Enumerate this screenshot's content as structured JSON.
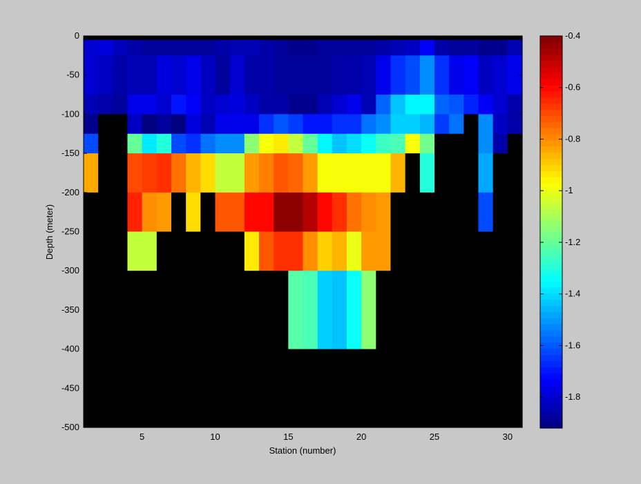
{
  "chart_data": {
    "type": "heatmap",
    "title": "",
    "xlabel": "Station (number)",
    "ylabel": "Depth (meter)",
    "xlim": [
      1,
      31
    ],
    "ylim": [
      -500,
      0
    ],
    "clim": [
      -1.92,
      -0.4
    ],
    "xticks": [
      5,
      10,
      15,
      20,
      25,
      30
    ],
    "yticks": [
      0,
      -50,
      -100,
      -150,
      -200,
      -250,
      -300,
      -350,
      -400,
      -450,
      -500
    ],
    "colorbar_ticks": [
      -0.4,
      -0.6,
      -0.8,
      -1,
      -1.2,
      -1.4,
      -1.6,
      -1.8
    ],
    "colormap": "jet",
    "no_data_color": "#000000",
    "background_color": "#c8c8c8",
    "layers": [
      {
        "depth_top": 0,
        "depth_bottom": -5,
        "values": [
          null,
          null,
          null,
          null,
          null,
          null,
          null,
          null,
          null,
          null,
          null,
          null,
          null,
          null,
          null,
          null,
          null,
          null,
          null,
          null,
          null,
          null,
          null,
          null,
          null,
          null,
          null,
          null,
          null,
          null
        ]
      },
      {
        "depth_top": -5,
        "depth_bottom": -25,
        "values": [
          -1.8,
          -1.78,
          -1.83,
          -1.86,
          -1.88,
          -1.88,
          -1.88,
          -1.88,
          -1.88,
          -1.86,
          -1.84,
          -1.84,
          -1.86,
          -1.88,
          -1.9,
          -1.9,
          -1.88,
          -1.88,
          -1.88,
          -1.88,
          -1.86,
          -1.84,
          -1.82,
          -1.74,
          -1.86,
          -1.88,
          -1.88,
          -1.9,
          -1.9,
          -1.84
        ]
      },
      {
        "depth_top": -25,
        "depth_bottom": -75,
        "values": [
          -1.8,
          -1.82,
          -1.86,
          -1.84,
          -1.84,
          -1.78,
          -1.8,
          -1.76,
          -1.82,
          -1.88,
          -1.8,
          -1.86,
          -1.86,
          -1.88,
          -1.88,
          -1.88,
          -1.88,
          -1.86,
          -1.86,
          -1.84,
          -1.76,
          -1.66,
          -1.62,
          -1.52,
          -1.66,
          -1.76,
          -1.74,
          -1.82,
          -1.8,
          -1.76
        ]
      },
      {
        "depth_top": -75,
        "depth_bottom": -100,
        "values": [
          -1.84,
          -1.86,
          -1.88,
          -1.76,
          -1.76,
          -1.8,
          -1.7,
          -1.74,
          -1.82,
          -1.8,
          -1.78,
          -1.82,
          -1.86,
          -1.86,
          -1.9,
          -1.9,
          -1.84,
          -1.8,
          -1.76,
          -1.84,
          -1.58,
          -1.44,
          -1.36,
          -1.36,
          -1.58,
          -1.6,
          -1.68,
          -1.74,
          -1.8,
          -1.86
        ]
      },
      {
        "depth_top": -100,
        "depth_bottom": -125,
        "values": [
          -1.9,
          null,
          null,
          -1.82,
          -1.92,
          -1.88,
          -1.92,
          -1.78,
          -1.84,
          -1.76,
          -1.76,
          -1.76,
          -1.66,
          -1.6,
          -1.64,
          -1.7,
          -1.7,
          -1.66,
          -1.66,
          -1.56,
          -1.52,
          -1.42,
          -1.42,
          -1.46,
          -1.64,
          -1.56,
          null,
          -1.52,
          -1.82,
          -1.86
        ]
      },
      {
        "depth_top": -125,
        "depth_bottom": -150,
        "values": [
          -1.62,
          null,
          null,
          -1.2,
          -1.38,
          -1.3,
          -1.62,
          -1.66,
          -1.56,
          -1.52,
          -1.52,
          -1.14,
          -0.98,
          -0.94,
          -1.06,
          -1.2,
          -1.36,
          -1.44,
          -1.4,
          -1.34,
          -1.26,
          -1.24,
          -0.98,
          -1.18,
          null,
          null,
          null,
          -1.52,
          -1.86,
          null
        ]
      },
      {
        "depth_top": -150,
        "depth_bottom": -200,
        "values": [
          -0.84,
          null,
          null,
          -0.7,
          -0.68,
          -0.66,
          -0.76,
          -0.86,
          -0.92,
          -1.06,
          -1.06,
          -0.82,
          -0.78,
          -0.72,
          -0.74,
          -0.82,
          -0.98,
          -0.98,
          -0.98,
          -0.98,
          -0.98,
          -0.86,
          null,
          -1.3,
          null,
          null,
          null,
          -1.48,
          null,
          null
        ]
      },
      {
        "depth_top": -200,
        "depth_bottom": -250,
        "values": [
          null,
          null,
          null,
          -0.64,
          -0.8,
          -0.82,
          null,
          -0.92,
          null,
          -0.72,
          -0.72,
          -0.6,
          -0.6,
          -0.42,
          -0.42,
          -0.48,
          -0.6,
          -0.66,
          -0.76,
          -0.8,
          -0.82,
          null,
          null,
          null,
          null,
          null,
          null,
          -1.62,
          null,
          null
        ]
      },
      {
        "depth_top": -250,
        "depth_bottom": -300,
        "values": [
          null,
          null,
          null,
          -1.06,
          -1.06,
          null,
          null,
          null,
          null,
          null,
          null,
          -0.94,
          -0.72,
          -0.66,
          -0.66,
          -0.8,
          -0.9,
          -0.86,
          -1.0,
          -0.82,
          -0.82,
          null,
          null,
          null,
          null,
          null,
          null,
          null,
          null,
          null
        ]
      },
      {
        "depth_top": -300,
        "depth_bottom": -400,
        "values": [
          null,
          null,
          null,
          null,
          null,
          null,
          null,
          null,
          null,
          null,
          null,
          null,
          null,
          null,
          -1.22,
          -1.24,
          -1.42,
          -1.44,
          -1.34,
          -1.14,
          null,
          null,
          null,
          null,
          null,
          null,
          null,
          null,
          null,
          null
        ]
      },
      {
        "depth_top": -400,
        "depth_bottom": -500,
        "values": [
          null,
          null,
          null,
          null,
          null,
          null,
          null,
          null,
          null,
          null,
          null,
          null,
          null,
          null,
          null,
          null,
          null,
          null,
          null,
          null,
          null,
          null,
          null,
          null,
          null,
          null,
          null,
          null,
          null,
          null
        ]
      }
    ]
  }
}
